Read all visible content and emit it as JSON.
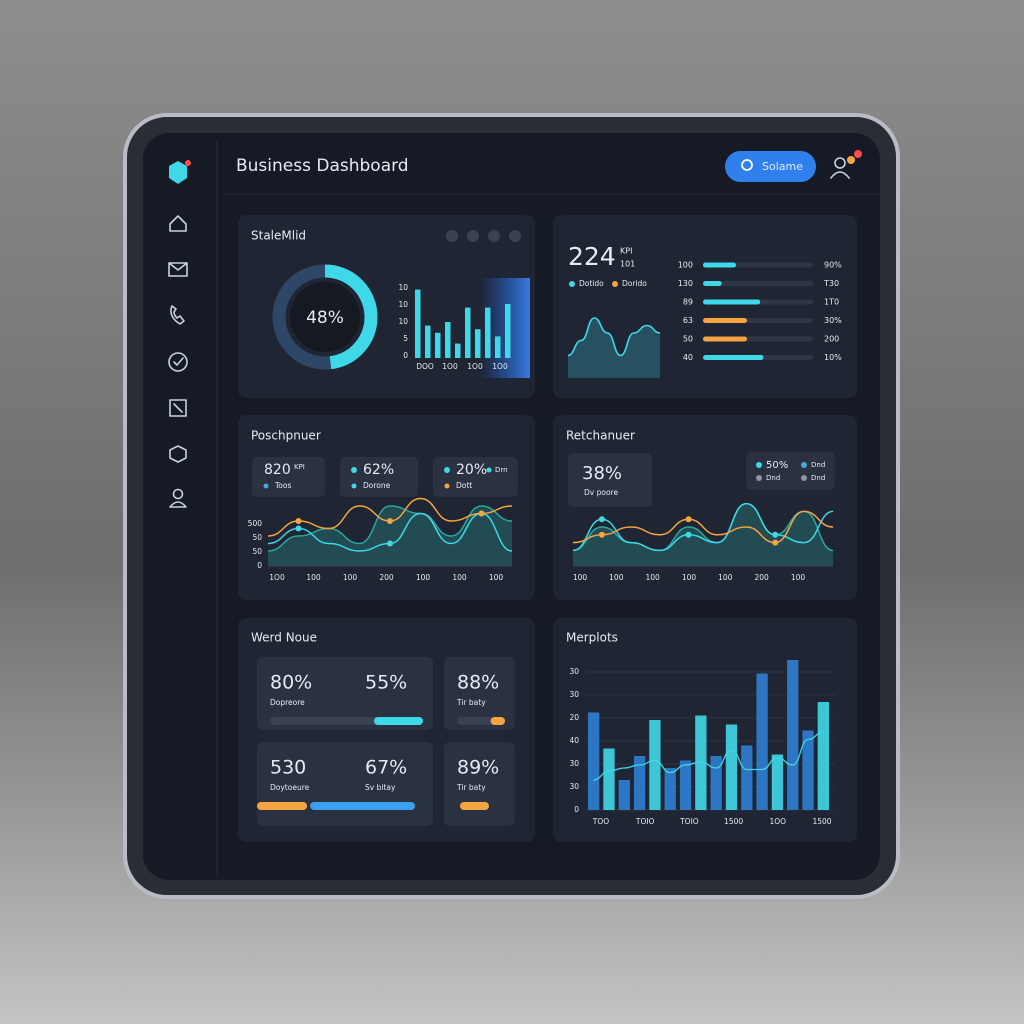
{
  "header": {
    "title": "Business Dashboard",
    "search_button": "Solame"
  },
  "panels": [
    {
      "title": "StaleMlid",
      "donut": {
        "value": 48,
        "label": "48%",
        "color": "#3fd8e8"
      },
      "bars": {
        "values": [
          9.5,
          4.5,
          3.5,
          5,
          2,
          7,
          4,
          7,
          3,
          7.5
        ],
        "ylim": [
          0,
          10
        ],
        "color": "#3fd8e8",
        "y_axis_text": [
          "10",
          "10",
          "10",
          "5",
          "0"
        ],
        "x_axis_text": [
          "DOO",
          "1O0",
          "1O0",
          "1O0"
        ]
      }
    },
    {
      "kpi": {
        "value": 224,
        "unit": "KPI",
        "sub": "101"
      },
      "legend": [
        {
          "name": "Dotido",
          "color": "#3fd8e8"
        },
        {
          "name": "Dorido",
          "color": "#f5a442"
        }
      ],
      "area": {
        "values": [
          3,
          5,
          8,
          6,
          3,
          6,
          7,
          6
        ],
        "ylim": [
          0,
          10
        ],
        "color": "#3fd8e8"
      },
      "progress": [
        {
          "left": 100,
          "value": 30,
          "right": "90%",
          "color": "#3fd8e8"
        },
        {
          "left": 130,
          "value": 17,
          "right": "T30",
          "color": "#3fd8e8"
        },
        {
          "left": 89,
          "value": 52,
          "right": "1T0",
          "color": "#3fd8e8"
        },
        {
          "left": 63,
          "value": 40,
          "right": "30%",
          "color": "#f5a442"
        },
        {
          "left": 50,
          "value": 40,
          "right": "200",
          "color": "#f5a442"
        },
        {
          "left": 40,
          "value": 55,
          "right": "10%",
          "color": "#3fd8e8"
        }
      ]
    },
    {
      "title": "Poschpnuer",
      "stats": [
        {
          "value": "820",
          "unit": "KPI",
          "label": "Toos",
          "dot": "#4aa8e0"
        },
        {
          "value": "62%",
          "label": "Dorone",
          "dot": "#3fd8e8",
          "label_dot": "#3fd8e8"
        },
        {
          "value": "20%",
          "legend": "Drn",
          "label": "Dott",
          "dot": "#3fd8e8",
          "label_dot": "#f5a442"
        }
      ],
      "chart": {
        "ylim": [
          0,
          10
        ],
        "y_axis_text": [
          "500",
          "50",
          "50",
          "0"
        ],
        "x_axis_text": [
          "1O0",
          "100",
          "100",
          "200",
          "100",
          "100",
          "100"
        ],
        "series": [
          {
            "color": "#2aa7a0",
            "area": true,
            "values": [
              2,
              4,
              5,
              3,
              8,
              7,
              4,
              8,
              6
            ]
          },
          {
            "color": "#3fd8e8",
            "values": [
              3,
              5,
              3,
              2,
              3,
              7,
              3,
              7,
              2
            ]
          },
          {
            "color": "#f5a442",
            "values": [
              4,
              6,
              5,
              8,
              6,
              9,
              6,
              7,
              8
            ]
          }
        ]
      }
    },
    {
      "title": "Retchanuer",
      "stat": {
        "value": "38%",
        "label": "Dv poore"
      },
      "legend": [
        {
          "name": "50%",
          "color": "#3fd8e8"
        },
        {
          "name": "Dnd",
          "color": "#4aa8e0"
        },
        {
          "name": "Dnd",
          "color": "#8b97a8"
        },
        {
          "name": "Dnd",
          "color": "#8b97a8"
        }
      ],
      "chart": {
        "ylim": [
          0,
          10
        ],
        "x_axis_text": [
          "100",
          "100",
          "100",
          "100",
          "100",
          "200",
          "100"
        ],
        "series": [
          {
            "color": "#2aa7a0",
            "area": true,
            "values": [
              2,
              5,
              3,
              2,
              5,
              3,
              8,
              4,
              7,
              2
            ]
          },
          {
            "color": "#3fd8e8",
            "values": [
              2,
              6,
              3,
              2,
              4,
              3,
              8,
              4,
              3,
              7
            ]
          },
          {
            "color": "#f5a442",
            "values": [
              3,
              4,
              5,
              4,
              6,
              4,
              5,
              3,
              7,
              5
            ]
          }
        ]
      }
    },
    {
      "title": "Werd Noue",
      "tiles": [
        {
          "stats": [
            {
              "value": "80%",
              "label": "Dopreore"
            },
            {
              "value": "55%"
            }
          ],
          "progress": [
            {
              "value": 32,
              "color": "#3fd8e8",
              "align": "end"
            }
          ]
        },
        {
          "stats": [
            {
              "value": "88%",
              "label": "Tir baty"
            }
          ],
          "progress": [
            {
              "value": 30,
              "color": "#f5a442",
              "align": "end"
            }
          ]
        },
        {
          "stats": [
            {
              "value": "530",
              "label": "Doytoeure"
            },
            {
              "value": "67%",
              "label": "Sv bitay"
            }
          ],
          "progress": [
            {
              "value": 32,
              "color": "#f5a442"
            },
            {
              "value": 65,
              "color": "#3aa0f0"
            }
          ]
        },
        {
          "stats": [
            {
              "value": "89%",
              "label": "Tir baty"
            }
          ],
          "progress": [
            {
              "value": 100,
              "color": "#f5a442"
            }
          ]
        }
      ]
    },
    {
      "title": "Merplots",
      "bars": {
        "ylim": [
          0,
          100
        ],
        "values": [
          65,
          41,
          20,
          36,
          60,
          28,
          33,
          63,
          36,
          57,
          43,
          91,
          37,
          100,
          53,
          72
        ],
        "colors": [
          "#2d7fd4",
          "#3fd8e8",
          "#2d7fd4",
          "#2d7fd4",
          "#3fd8e8",
          "#2d7fd4",
          "#2d7fd4",
          "#3fd8e8",
          "#2d7fd4",
          "#3fd8e8",
          "#2d7fd4",
          "#2d7fd4",
          "#3fd8e8",
          "#2d7fd4",
          "#2d7fd4",
          "#3fd8e8"
        ],
        "line": [
          20,
          26,
          28,
          30,
          33,
          25,
          30,
          32,
          28,
          40,
          27,
          27,
          35,
          30,
          47,
          52
        ],
        "line_color": "#3fd8e8",
        "y_axis_text": [
          "30",
          "30",
          "20",
          "40",
          "30",
          "30",
          "0"
        ],
        "x_axis_text": [
          "TOO",
          "TOIO",
          "TOIO",
          "1500",
          "1OO",
          "1500"
        ]
      }
    }
  ]
}
